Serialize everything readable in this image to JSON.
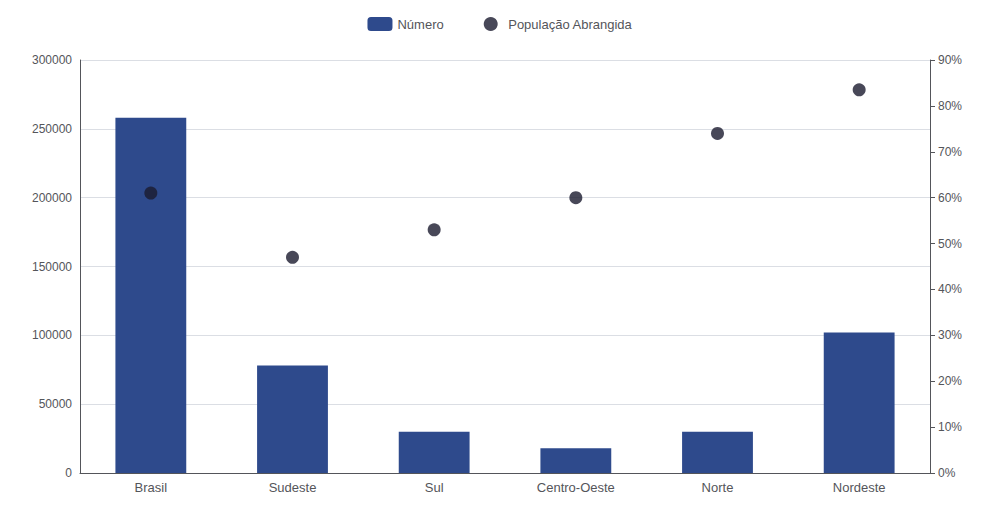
{
  "chart_data": {
    "type": "bar",
    "categories": [
      "Brasil",
      "Sudeste",
      "Sul",
      "Centro-Oeste",
      "Norte",
      "Nordeste"
    ],
    "series": [
      {
        "name": "Número",
        "type": "bar",
        "color": "#2E4A8C",
        "values": [
          258000,
          78000,
          30000,
          18000,
          30000,
          102000
        ]
      },
      {
        "name": "População Abrangida",
        "type": "scatter",
        "axis": "y2",
        "color": "#1a1a2e",
        "marker": "circle",
        "values": [
          0.61,
          0.47,
          0.53,
          0.6,
          0.74,
          0.835
        ]
      }
    ],
    "ylim": [
      0,
      300000
    ],
    "yticks": [
      0,
      50000,
      100000,
      150000,
      200000,
      250000,
      300000
    ],
    "y2lim": [
      0,
      0.9
    ],
    "y2ticks": [
      {
        "value": 0,
        "label": "0%"
      },
      {
        "value": 0.1,
        "label": "10%"
      },
      {
        "value": 0.2,
        "label": "20%"
      },
      {
        "value": 0.3,
        "label": "30%"
      },
      {
        "value": 0.4,
        "label": "40%"
      },
      {
        "value": 0.5,
        "label": "50%"
      },
      {
        "value": 0.6,
        "label": "60%"
      },
      {
        "value": 0.7,
        "label": "70%"
      },
      {
        "value": 0.8,
        "label": "80%"
      },
      {
        "value": 0.9,
        "label": "90%"
      }
    ],
    "grid": true,
    "legend": "top"
  }
}
